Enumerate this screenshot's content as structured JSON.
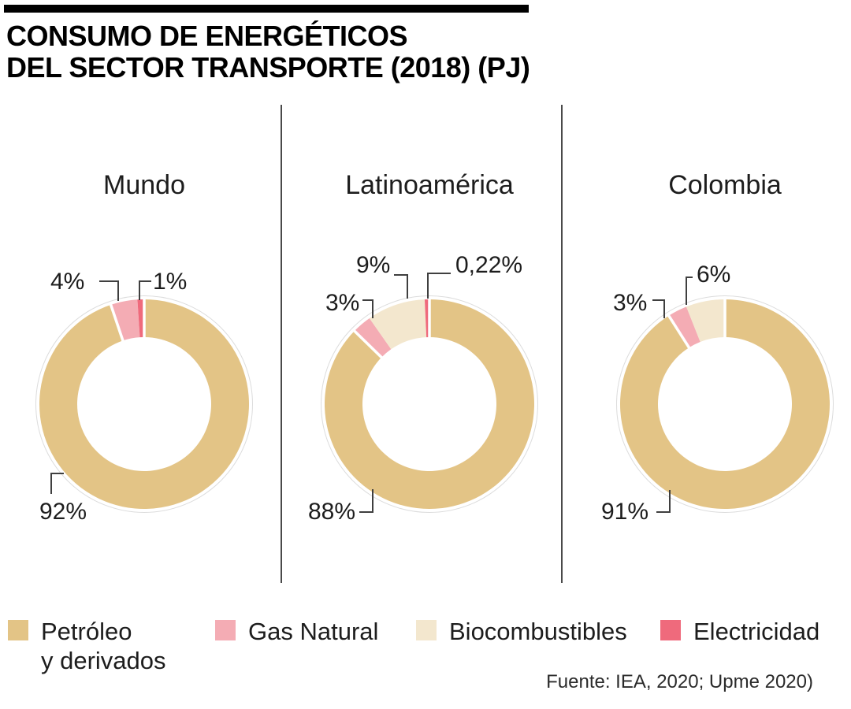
{
  "header": {
    "title_line1": "CONSUMO DE ENERGÉTICOS",
    "title_line2": "DEL SECTOR TRANSPORTE (2018) (PJ)"
  },
  "source": "Fuente: IEA, 2020; Upme 2020)",
  "colors": {
    "petroleo": "#E3C486",
    "gas_natural": "#F4ACB4",
    "biocombustibles": "#F3E7CE",
    "electricidad": "#EF6A7C",
    "connector": "#3f3f3f",
    "accent_bar": "#000000"
  },
  "legend": {
    "items": [
      {
        "line1": "Petróleo",
        "line2": "y derivados",
        "color": "#E3C486"
      },
      {
        "line1": "Gas Natural",
        "line2": "",
        "color": "#F4ACB4"
      },
      {
        "line1": "Biocombustibles",
        "line2": "",
        "color": "#F3E7CE"
      },
      {
        "line1": "Electricidad",
        "line2": "",
        "color": "#EF6A7C"
      }
    ]
  },
  "chart_data": [
    {
      "type": "pie",
      "subtype": "donut",
      "title": "Mundo",
      "units": "%",
      "slices": [
        {
          "name": "Petróleo y derivados",
          "value": 92,
          "label": "92%",
          "color": "#E3C486"
        },
        {
          "name": "Gas Natural",
          "value": 4,
          "label": "4%",
          "color": "#F4ACB4"
        },
        {
          "name": "Electricidad",
          "value": 1,
          "label": "1%",
          "color": "#EF6A7C"
        }
      ]
    },
    {
      "type": "pie",
      "subtype": "donut",
      "title": "Latinoamérica",
      "units": "%",
      "slices": [
        {
          "name": "Petróleo y derivados",
          "value": 88,
          "label": "88%",
          "color": "#E3C486"
        },
        {
          "name": "Gas Natural",
          "value": 3,
          "label": "3%",
          "color": "#F4ACB4"
        },
        {
          "name": "Biocombustibles",
          "value": 9,
          "label": "9%",
          "color": "#F3E7CE"
        },
        {
          "name": "Electricidad",
          "value": 0.22,
          "label": "0,22%",
          "color": "#EF6A7C"
        }
      ]
    },
    {
      "type": "pie",
      "subtype": "donut",
      "title": "Colombia",
      "units": "%",
      "slices": [
        {
          "name": "Petróleo y derivados",
          "value": 91,
          "label": "91%",
          "color": "#E3C486"
        },
        {
          "name": "Gas Natural",
          "value": 3,
          "label": "3%",
          "color": "#F4ACB4"
        },
        {
          "name": "Biocombustibles",
          "value": 6,
          "label": "6%",
          "color": "#F3E7CE"
        }
      ]
    }
  ]
}
